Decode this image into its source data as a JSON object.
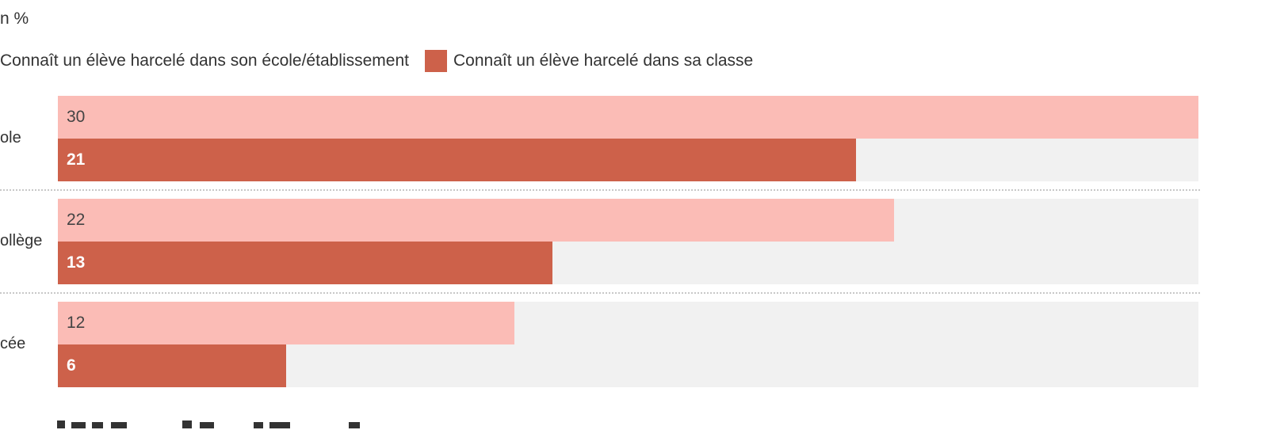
{
  "unit_label": "n %",
  "chart_data": {
    "type": "bar",
    "orientation": "horizontal",
    "categories": [
      "ole",
      "ollège",
      "cée"
    ],
    "series": [
      {
        "name": "Connaît un élève harcelé dans son école/établissement",
        "values": [
          30,
          22,
          12
        ],
        "color": "#fbbcb6"
      },
      {
        "name": "Connaît un élève harcelé dans sa classe",
        "values": [
          21,
          13,
          6
        ],
        "color": "#cd614a"
      }
    ],
    "xlim": [
      0,
      30
    ],
    "track_color": "#f1f1f1",
    "legend_position": "top-left",
    "grid": false
  }
}
